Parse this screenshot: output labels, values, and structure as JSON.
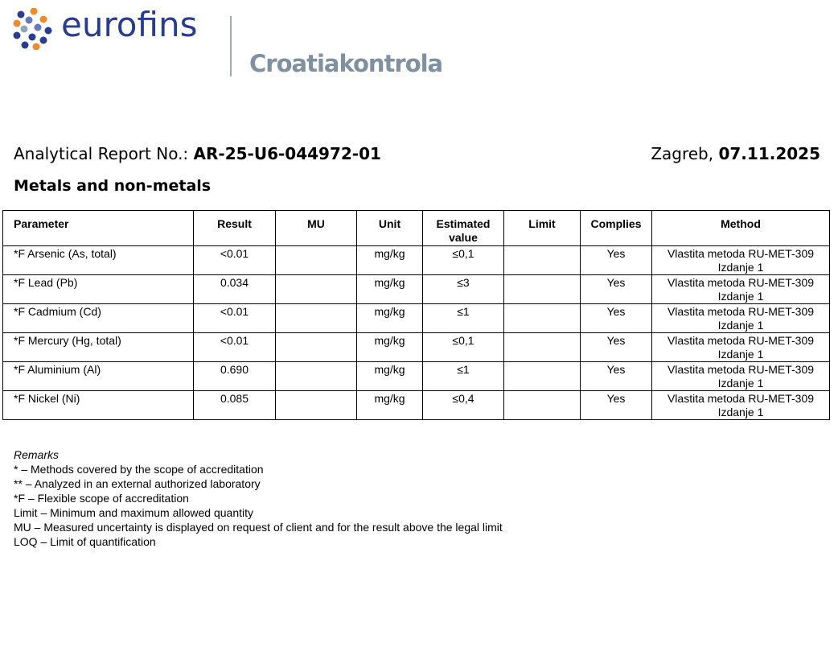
{
  "header": {
    "brand": "eurofins",
    "subsidiary": "Croatiakontrola",
    "brand_color": "#2a3c8e"
  },
  "report": {
    "label": "Analytical Report No.: ",
    "number": "AR-25-U6-044972-01",
    "place": "Zagreb, ",
    "date": "07.11.2025"
  },
  "section_title": "Metals and non-metals",
  "table": {
    "columns": [
      "Parameter",
      "Result",
      "MU",
      "Unit",
      "Estimated value",
      "Limit",
      "Complies",
      "Method"
    ],
    "rows": [
      {
        "parameter": "*F Arsenic (As, total)",
        "result": "<0.01",
        "mu": "",
        "unit": "mg/kg",
        "estimated": "≤0,1",
        "limit": "",
        "complies": "Yes",
        "method": "Vlastita metoda RU-MET-309 Izdanje 1"
      },
      {
        "parameter": "*F Lead (Pb)",
        "result": "0.034",
        "mu": "",
        "unit": "mg/kg",
        "estimated": "≤3",
        "limit": "",
        "complies": "Yes",
        "method": "Vlastita metoda RU-MET-309 Izdanje 1"
      },
      {
        "parameter": "*F Cadmium (Cd)",
        "result": "<0.01",
        "mu": "",
        "unit": "mg/kg",
        "estimated": "≤1",
        "limit": "",
        "complies": "Yes",
        "method": "Vlastita metoda RU-MET-309 Izdanje 1"
      },
      {
        "parameter": "*F Mercury (Hg, total)",
        "result": "<0.01",
        "mu": "",
        "unit": "mg/kg",
        "estimated": "≤0,1",
        "limit": "",
        "complies": "Yes",
        "method": "Vlastita metoda RU-MET-309 Izdanje 1"
      },
      {
        "parameter": "*F Aluminium (Al)",
        "result": "0.690",
        "mu": "",
        "unit": "mg/kg",
        "estimated": "≤1",
        "limit": "",
        "complies": "Yes",
        "method": "Vlastita metoda RU-MET-309 Izdanje 1"
      },
      {
        "parameter": "*F Nickel (Ni)",
        "result": "0.085",
        "mu": "",
        "unit": "mg/kg",
        "estimated": "≤0,4",
        "limit": "",
        "complies": "Yes",
        "method": "Vlastita metoda RU-MET-309 Izdanje 1"
      }
    ]
  },
  "remarks": {
    "heading": "Remarks",
    "lines": [
      "* – Methods covered by the scope of accreditation",
      "** – Analyzed in an external authorized laboratory",
      "*F – Flexible scope of accreditation",
      "Limit – Minimum and maximum allowed quantity",
      "MU – Measured uncertainty is displayed on request of client and for the result above the legal limit",
      "LOQ – Limit of quantification"
    ]
  }
}
